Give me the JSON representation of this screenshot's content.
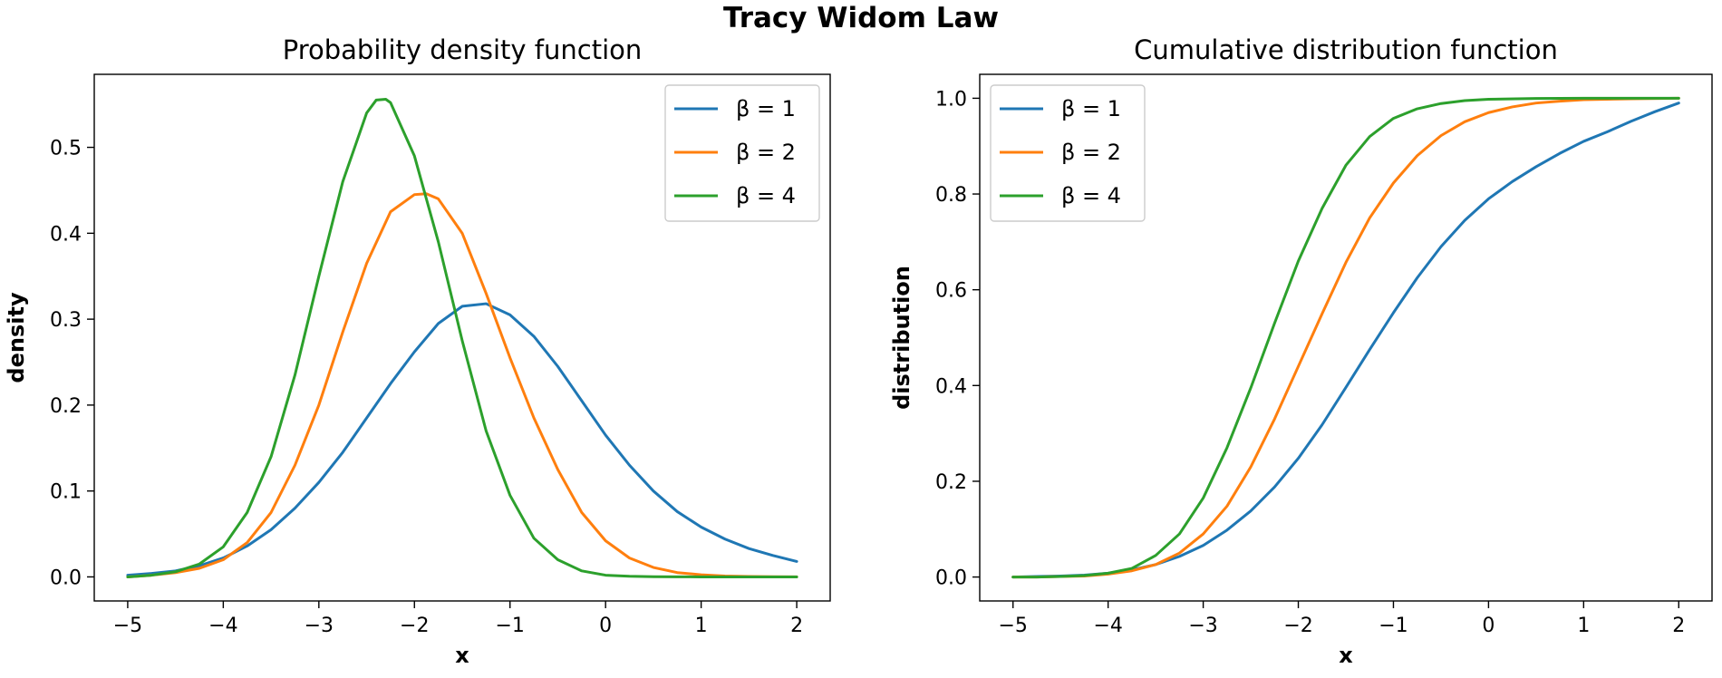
{
  "figure": {
    "suptitle": "Tracy Widom Law"
  },
  "chart_data": [
    {
      "type": "line",
      "title": "Probability density function",
      "xlabel": "x",
      "ylabel": "density",
      "xlim": [
        -5.35,
        2.35
      ],
      "ylim": [
        -0.028,
        0.585
      ],
      "xticks": [
        -5,
        -4,
        -3,
        -2,
        -1,
        0,
        1,
        2
      ],
      "xtick_labels": [
        "−5",
        "−4",
        "−3",
        "−2",
        "−1",
        "0",
        "1",
        "2"
      ],
      "yticks": [
        0.0,
        0.1,
        0.2,
        0.3,
        0.4,
        0.5
      ],
      "ytick_labels": [
        "0.0",
        "0.1",
        "0.2",
        "0.3",
        "0.4",
        "0.5"
      ],
      "grid": false,
      "legend_position": "top-right",
      "series": [
        {
          "name": "β = 1",
          "color": "#1f77b4",
          "x": [
            -5.0,
            -4.75,
            -4.5,
            -4.25,
            -4.0,
            -3.75,
            -3.5,
            -3.25,
            -3.0,
            -2.75,
            -2.5,
            -2.25,
            -2.0,
            -1.75,
            -1.5,
            -1.25,
            -1.0,
            -0.75,
            -0.5,
            -0.25,
            0.0,
            0.25,
            0.5,
            0.75,
            1.0,
            1.25,
            1.5,
            1.75,
            2.0
          ],
          "y": [
            0.002,
            0.004,
            0.007,
            0.013,
            0.022,
            0.036,
            0.055,
            0.08,
            0.11,
            0.145,
            0.185,
            0.225,
            0.262,
            0.295,
            0.315,
            0.318,
            0.305,
            0.28,
            0.245,
            0.205,
            0.165,
            0.13,
            0.1,
            0.076,
            0.058,
            0.044,
            0.033,
            0.025,
            0.018
          ]
        },
        {
          "name": "β = 2",
          "color": "#ff7f0e",
          "x": [
            -5.0,
            -4.75,
            -4.5,
            -4.25,
            -4.0,
            -3.75,
            -3.5,
            -3.25,
            -3.0,
            -2.75,
            -2.5,
            -2.25,
            -2.0,
            -1.875,
            -1.75,
            -1.5,
            -1.25,
            -1.0,
            -0.75,
            -0.5,
            -0.25,
            0.0,
            0.25,
            0.5,
            0.75,
            1.0,
            1.25,
            1.5,
            1.75,
            2.0
          ],
          "y": [
            0.0,
            0.002,
            0.005,
            0.01,
            0.02,
            0.04,
            0.075,
            0.13,
            0.2,
            0.285,
            0.365,
            0.425,
            0.445,
            0.446,
            0.44,
            0.4,
            0.33,
            0.255,
            0.185,
            0.125,
            0.075,
            0.042,
            0.022,
            0.011,
            0.005,
            0.0025,
            0.001,
            0.0005,
            0.0002,
            0.0001
          ]
        },
        {
          "name": "β = 4",
          "color": "#2ca02c",
          "x": [
            -5.0,
            -4.75,
            -4.5,
            -4.25,
            -4.0,
            -3.75,
            -3.5,
            -3.25,
            -3.0,
            -2.75,
            -2.5,
            -2.4,
            -2.3,
            -2.25,
            -2.0,
            -1.75,
            -1.5,
            -1.25,
            -1.0,
            -0.75,
            -0.5,
            -0.25,
            0.0,
            0.25,
            0.5,
            0.75,
            1.0,
            1.5,
            2.0
          ],
          "y": [
            0.0,
            0.002,
            0.006,
            0.015,
            0.035,
            0.075,
            0.14,
            0.235,
            0.35,
            0.46,
            0.54,
            0.555,
            0.556,
            0.552,
            0.49,
            0.39,
            0.275,
            0.17,
            0.095,
            0.045,
            0.02,
            0.007,
            0.002,
            0.0007,
            0.0002,
            0.0001,
            0.0,
            0.0,
            0.0
          ]
        }
      ]
    },
    {
      "type": "line",
      "title": "Cumulative distribution function",
      "xlabel": "x",
      "ylabel": "distribution",
      "xlim": [
        -5.35,
        2.35
      ],
      "ylim": [
        -0.05,
        1.05
      ],
      "xticks": [
        -5,
        -4,
        -3,
        -2,
        -1,
        0,
        1,
        2
      ],
      "xtick_labels": [
        "−5",
        "−4",
        "−3",
        "−2",
        "−1",
        "0",
        "1",
        "2"
      ],
      "yticks": [
        0.0,
        0.2,
        0.4,
        0.6,
        0.8,
        1.0
      ],
      "ytick_labels": [
        "0.0",
        "0.2",
        "0.4",
        "0.6",
        "0.8",
        "1.0"
      ],
      "grid": false,
      "legend_position": "top-left",
      "series": [
        {
          "name": "β = 1",
          "color": "#1f77b4",
          "x": [
            -5.0,
            -4.75,
            -4.5,
            -4.25,
            -4.0,
            -3.75,
            -3.5,
            -3.25,
            -3.0,
            -2.75,
            -2.5,
            -2.25,
            -2.0,
            -1.75,
            -1.5,
            -1.25,
            -1.0,
            -0.75,
            -0.5,
            -0.25,
            0.0,
            0.25,
            0.5,
            0.75,
            1.0,
            1.25,
            1.5,
            1.75,
            2.0
          ],
          "y": [
            0.0,
            0.001,
            0.002,
            0.004,
            0.008,
            0.015,
            0.026,
            0.043,
            0.066,
            0.098,
            0.138,
            0.188,
            0.248,
            0.318,
            0.396,
            0.475,
            0.552,
            0.625,
            0.69,
            0.745,
            0.79,
            0.826,
            0.857,
            0.885,
            0.91,
            0.93,
            0.952,
            0.972,
            0.99
          ]
        },
        {
          "name": "β = 2",
          "color": "#ff7f0e",
          "x": [
            -5.0,
            -4.75,
            -4.5,
            -4.25,
            -4.0,
            -3.75,
            -3.5,
            -3.25,
            -3.0,
            -2.75,
            -2.5,
            -2.25,
            -2.0,
            -1.75,
            -1.5,
            -1.25,
            -1.0,
            -0.75,
            -0.5,
            -0.25,
            0.0,
            0.25,
            0.5,
            0.75,
            1.0,
            1.5,
            2.0
          ],
          "y": [
            0.0,
            0.0,
            0.001,
            0.002,
            0.006,
            0.013,
            0.026,
            0.05,
            0.09,
            0.148,
            0.23,
            0.33,
            0.44,
            0.55,
            0.657,
            0.75,
            0.823,
            0.88,
            0.922,
            0.951,
            0.97,
            0.982,
            0.99,
            0.994,
            0.997,
            0.999,
            1.0
          ]
        },
        {
          "name": "β = 4",
          "color": "#2ca02c",
          "x": [
            -5.0,
            -4.75,
            -4.5,
            -4.25,
            -4.0,
            -3.75,
            -3.5,
            -3.25,
            -3.0,
            -2.75,
            -2.5,
            -2.25,
            -2.0,
            -1.75,
            -1.5,
            -1.25,
            -1.0,
            -0.75,
            -0.5,
            -0.25,
            0.0,
            0.5,
            1.0,
            1.5,
            2.0
          ],
          "y": [
            0.0,
            0.0,
            0.001,
            0.003,
            0.008,
            0.018,
            0.045,
            0.09,
            0.165,
            0.27,
            0.395,
            0.53,
            0.66,
            0.77,
            0.86,
            0.92,
            0.958,
            0.978,
            0.989,
            0.995,
            0.998,
            0.9995,
            1.0,
            1.0,
            1.0
          ]
        }
      ]
    }
  ]
}
